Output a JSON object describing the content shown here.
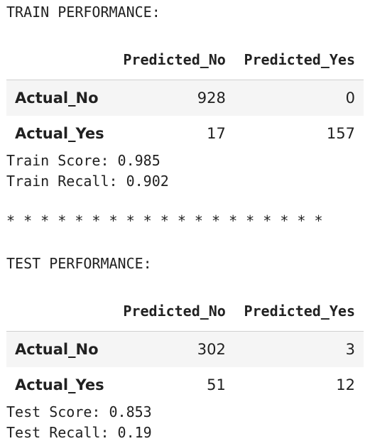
{
  "train": {
    "heading": "TRAIN PERFORMANCE:",
    "columns": [
      "",
      "Predicted_No",
      "Predicted_Yes"
    ],
    "rows": [
      {
        "label": "Actual_No",
        "predicted_no": "928",
        "predicted_yes": "0"
      },
      {
        "label": "Actual_Yes",
        "predicted_no": "17",
        "predicted_yes": "157"
      }
    ],
    "score_line": "Train Score: 0.985",
    "recall_line": "Train Recall: 0.902"
  },
  "separator": "* * * * * * * * * * * * * * * * * * *",
  "test": {
    "heading": "TEST PERFORMANCE:",
    "columns": [
      "",
      "Predicted_No",
      "Predicted_Yes"
    ],
    "rows": [
      {
        "label": "Actual_No",
        "predicted_no": "302",
        "predicted_yes": "3"
      },
      {
        "label": "Actual_Yes",
        "predicted_no": "51",
        "predicted_yes": "12"
      }
    ],
    "score_line": "Test Score: 0.853",
    "recall_line": "Test Recall: 0.19"
  }
}
